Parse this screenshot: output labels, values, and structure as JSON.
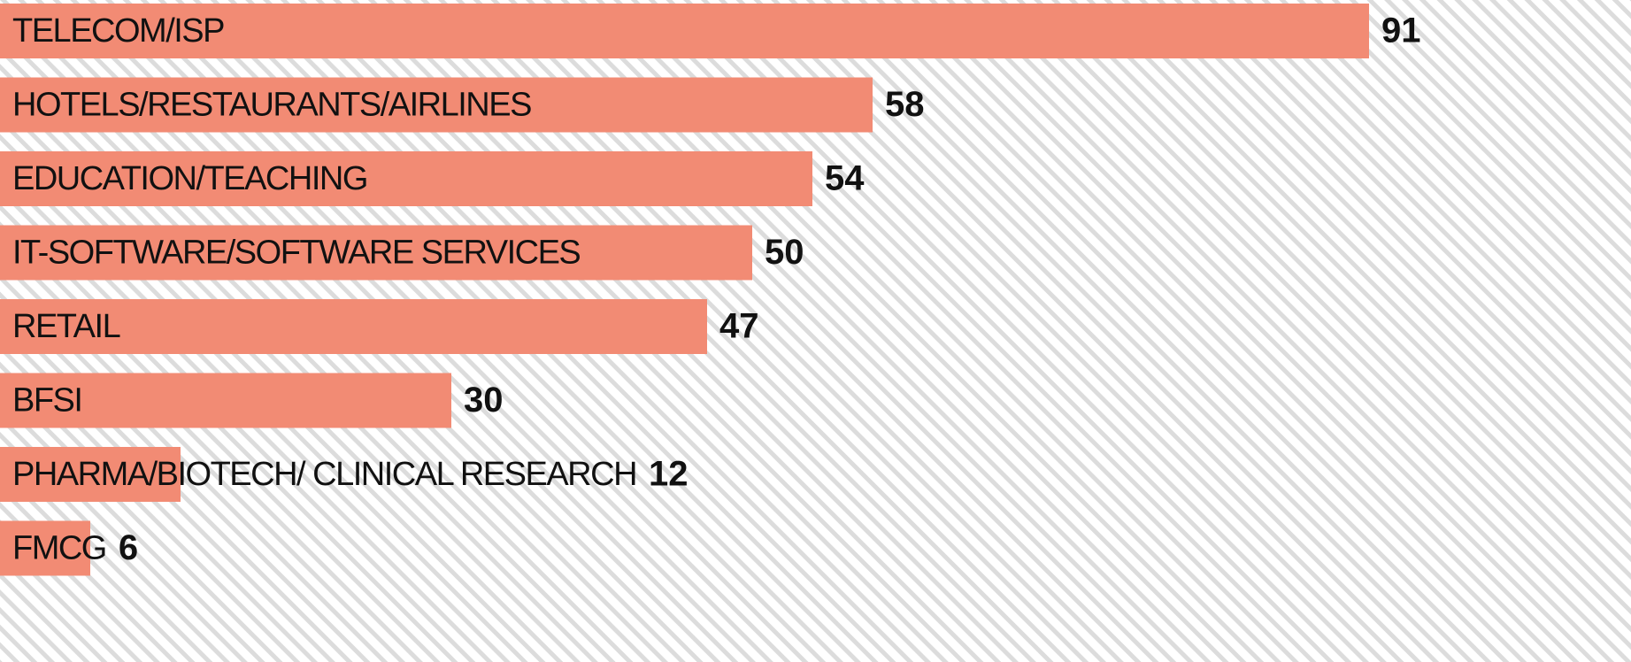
{
  "chart_data": {
    "type": "bar",
    "orientation": "horizontal",
    "categories": [
      "TELECOM/ISP",
      "HOTELS/RESTAURANTS/AIRLINES",
      "EDUCATION/TEACHING",
      "IT-SOFTWARE/SOFTWARE SERVICES",
      "RETAIL",
      "BFSI",
      "PHARMA/BIOTECH/ CLINICAL RESEARCH",
      "FMCG"
    ],
    "values": [
      91,
      58,
      54,
      50,
      47,
      30,
      12,
      6
    ],
    "color": "#f28b74",
    "xlim": [
      0,
      100
    ]
  }
}
